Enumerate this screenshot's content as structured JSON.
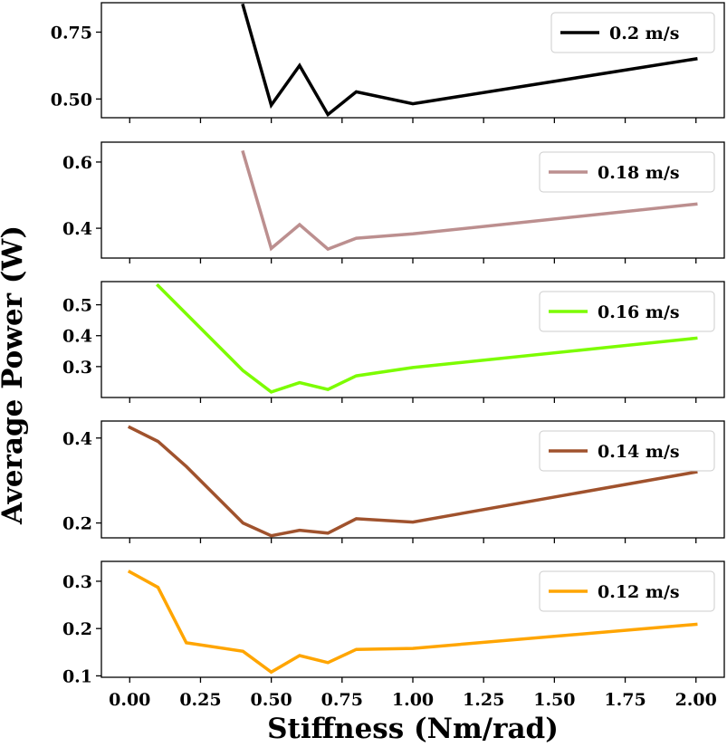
{
  "chart_data": {
    "type": "line",
    "xlabel": "Stiffness (Nm/rad)",
    "ylabel": "Average Power (W)",
    "xlim": [
      -0.1,
      2.1
    ],
    "x_ticks": [
      0.0,
      0.25,
      0.5,
      0.75,
      1.0,
      1.25,
      1.5,
      1.75,
      2.0
    ],
    "x_tick_labels": [
      "0.00",
      "0.25",
      "0.50",
      "0.75",
      "1.00",
      "1.25",
      "1.50",
      "1.75",
      "2.00"
    ],
    "legend_position": "top-right",
    "panels": [
      {
        "name": "0.2 m/s",
        "color": "#000000",
        "ylim": [
          0.43,
          0.86
        ],
        "y_ticks": [
          0.5,
          0.75
        ],
        "y_tick_labels": [
          "0.50",
          "0.75"
        ],
        "x": [
          0.4,
          0.5,
          0.6,
          0.7,
          0.8,
          1.0,
          2.0
        ],
        "y": [
          0.85,
          0.477,
          0.625,
          0.442,
          0.527,
          0.482,
          0.65
        ]
      },
      {
        "name": "0.18 m/s",
        "color": "#bc8f8f",
        "ylim": [
          0.31,
          0.66
        ],
        "y_ticks": [
          0.4,
          0.6
        ],
        "y_tick_labels": [
          "0.4",
          "0.6"
        ],
        "x": [
          0.4,
          0.5,
          0.6,
          0.7,
          0.8,
          1.0,
          2.0
        ],
        "y": [
          0.63,
          0.339,
          0.411,
          0.337,
          0.37,
          0.383,
          0.473
        ]
      },
      {
        "name": "0.16 m/s",
        "color": "#7cfc00",
        "ylim": [
          0.2,
          0.575
        ],
        "y_ticks": [
          0.3,
          0.4,
          0.5
        ],
        "y_tick_labels": [
          "0.3",
          "0.4",
          "0.5"
        ],
        "x": [
          0.1,
          0.4,
          0.5,
          0.6,
          0.7,
          0.8,
          1.0,
          2.0
        ],
        "y": [
          0.562,
          0.287,
          0.218,
          0.248,
          0.226,
          0.27,
          0.297,
          0.392
        ]
      },
      {
        "name": "0.14 m/s",
        "color": "#a0522d",
        "ylim": [
          0.165,
          0.44
        ],
        "y_ticks": [
          0.2,
          0.4
        ],
        "y_tick_labels": [
          "0.2",
          "0.4"
        ],
        "x": [
          0.0,
          0.1,
          0.2,
          0.4,
          0.5,
          0.6,
          0.7,
          0.8,
          1.0,
          2.0
        ],
        "y": [
          0.425,
          0.392,
          0.333,
          0.2,
          0.17,
          0.183,
          0.176,
          0.21,
          0.202,
          0.32
        ]
      },
      {
        "name": "0.12 m/s",
        "color": "#ffa500",
        "ylim": [
          0.097,
          0.342
        ],
        "y_ticks": [
          0.1,
          0.2,
          0.3
        ],
        "y_tick_labels": [
          "0.1",
          "0.2",
          "0.3"
        ],
        "x": [
          0.0,
          0.1,
          0.2,
          0.4,
          0.5,
          0.6,
          0.7,
          0.8,
          1.0,
          2.0
        ],
        "y": [
          0.32,
          0.287,
          0.17,
          0.152,
          0.108,
          0.143,
          0.128,
          0.156,
          0.158,
          0.209
        ]
      }
    ]
  }
}
